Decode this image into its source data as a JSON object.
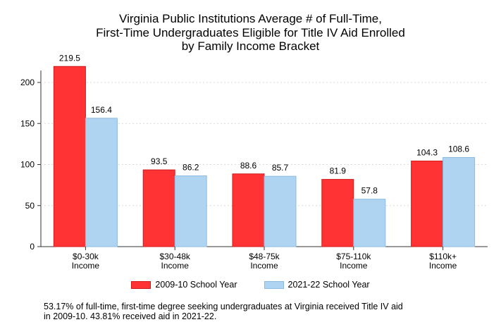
{
  "chart_data": {
    "type": "bar",
    "title_lines": [
      "Virginia Public Institutions Average # of Full-Time,",
      "First-Time Undergraduates Eligible for Title IV Aid Enrolled",
      "by Family Income Bracket"
    ],
    "categories": [
      [
        "$0-30k",
        "Income"
      ],
      [
        "$30-48k",
        "Income"
      ],
      [
        "$48-75k",
        "Income"
      ],
      [
        "$75-110k",
        "Income"
      ],
      [
        "$110k+",
        "Income"
      ]
    ],
    "series": [
      {
        "name": "2009-10 School Year",
        "values": [
          219.5,
          93.5,
          88.6,
          81.9,
          104.3
        ],
        "labels": [
          "219.5",
          "93.5",
          "88.6",
          "81.9",
          "104.3"
        ],
        "color": "#ff3333",
        "stroke": "#d11a1a"
      },
      {
        "name": "2021-22 School Year",
        "values": [
          156.4,
          86.2,
          85.7,
          57.8,
          108.6
        ],
        "labels": [
          "156.4",
          "86.2",
          "85.7",
          "57.8",
          "108.6"
        ],
        "color": "#aed4f2",
        "stroke": "#8bbbe3"
      }
    ],
    "y_ticks": [
      "0",
      "50",
      "100",
      "150",
      "200"
    ],
    "ylim": [
      0,
      225
    ],
    "grid": true,
    "legend_position": "bottom"
  },
  "note": {
    "line1": "53.17% of full-time, first-time degree seeking undergraduates at Virginia received Title IV aid",
    "line2": "in 2009-10. 43.81% received aid in 2021-22."
  }
}
